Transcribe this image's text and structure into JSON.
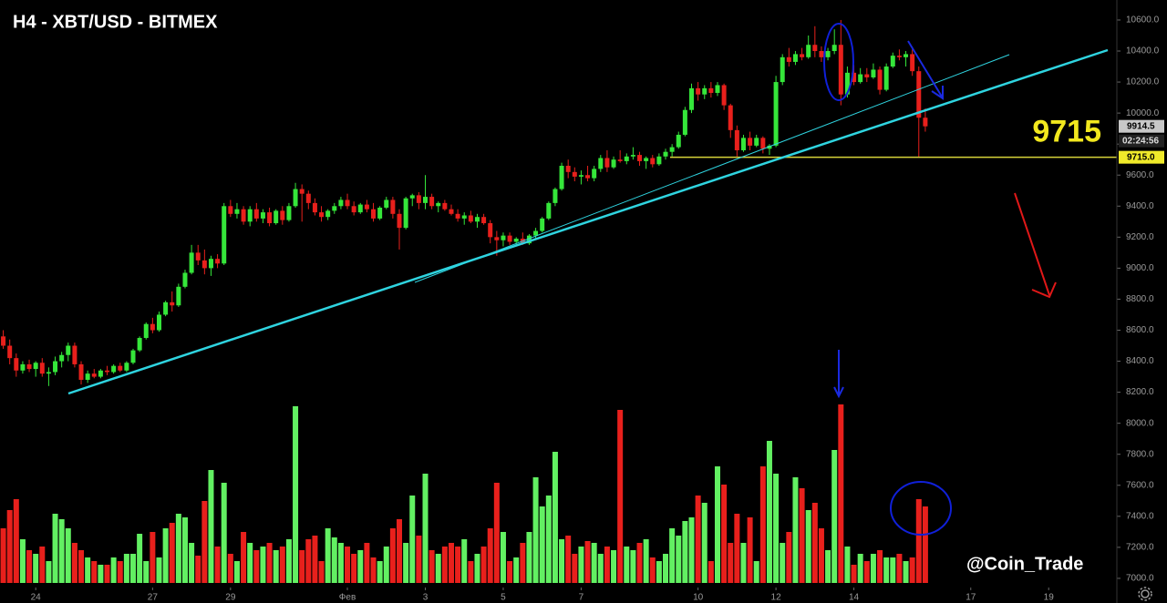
{
  "chart_data": {
    "type": "candlestick",
    "title": "H4 - XBT/USD - BITMEX",
    "up_color": "#35e63a",
    "down_color": "#e8201c",
    "volume_up_color": "#62f062",
    "volume_down_color": "#e8201c",
    "level": 9715,
    "level_color": "#d8d43a",
    "price_tags": [
      9914.5,
      "02:24:56",
      {
        "value": 9715,
        "label": "9715.0"
      }
    ],
    "watermark": "@Coin_Trade",
    "xlim": [
      -0.5,
      171.5
    ],
    "xticks": [
      {
        "value": 5,
        "label": "24"
      },
      {
        "value": 23,
        "label": "27"
      },
      {
        "value": 35,
        "label": "29"
      },
      {
        "value": 53,
        "label": "Фев"
      },
      {
        "value": 65,
        "label": "3"
      },
      {
        "value": 77,
        "label": "5"
      },
      {
        "value": 89,
        "label": "7"
      },
      {
        "value": 107,
        "label": "10"
      },
      {
        "value": 119,
        "label": "12"
      },
      {
        "value": 131,
        "label": "14"
      },
      {
        "value": 149,
        "label": "17"
      },
      {
        "value": 161,
        "label": "19"
      }
    ],
    "ylim": [
      6841,
      10729
    ],
    "yticks": [
      {
        "value": 7000,
        "label": "7000.0"
      },
      {
        "value": 7200,
        "label": "7200.0"
      },
      {
        "value": 7400,
        "label": "7400.0"
      },
      {
        "value": 7600,
        "label": "7600.0"
      },
      {
        "value": 7800,
        "label": "7800.0"
      },
      {
        "value": 8000,
        "label": "8000.0"
      },
      {
        "value": 8200,
        "label": "8200.0"
      },
      {
        "value": 8400,
        "label": "8400.0"
      },
      {
        "value": 8600,
        "label": "8600.0"
      },
      {
        "value": 8800,
        "label": "8800.0"
      },
      {
        "value": 9000,
        "label": "9000.0"
      },
      {
        "value": 9200,
        "label": "9200.0"
      },
      {
        "value": 9400,
        "label": "9400.0"
      },
      {
        "value": 9600,
        "label": "9600.0"
      },
      {
        "value": 9800,
        "label": "9800.0"
      },
      {
        "value": 10000,
        "label": "10000.0"
      },
      {
        "value": 10200,
        "label": "10200.0"
      },
      {
        "value": 10400,
        "label": "10400.0"
      },
      {
        "value": 10600,
        "label": "10600.0"
      }
    ],
    "candles": [
      [
        8560,
        8600,
        8480,
        8500
      ],
      [
        8500,
        8540,
        8380,
        8420
      ],
      [
        8420,
        8450,
        8300,
        8340
      ],
      [
        8340,
        8400,
        8320,
        8380
      ],
      [
        8380,
        8410,
        8330,
        8350
      ],
      [
        8350,
        8400,
        8300,
        8390
      ],
      [
        8390,
        8420,
        8300,
        8320
      ],
      [
        8320,
        8360,
        8240,
        8330
      ],
      [
        8330,
        8430,
        8310,
        8400
      ],
      [
        8400,
        8460,
        8360,
        8440
      ],
      [
        8440,
        8520,
        8400,
        8500
      ],
      [
        8500,
        8520,
        8360,
        8380
      ],
      [
        8380,
        8400,
        8250,
        8280
      ],
      [
        8280,
        8340,
        8260,
        8320
      ],
      [
        8320,
        8350,
        8290,
        8300
      ],
      [
        8300,
        8350,
        8290,
        8340
      ],
      [
        8340,
        8370,
        8310,
        8330
      ],
      [
        8330,
        8380,
        8320,
        8370
      ],
      [
        8370,
        8390,
        8330,
        8340
      ],
      [
        8340,
        8400,
        8330,
        8390
      ],
      [
        8390,
        8480,
        8380,
        8470
      ],
      [
        8470,
        8560,
        8460,
        8550
      ],
      [
        8550,
        8650,
        8540,
        8640
      ],
      [
        8640,
        8680,
        8580,
        8600
      ],
      [
        8600,
        8720,
        8590,
        8700
      ],
      [
        8700,
        8790,
        8690,
        8780
      ],
      [
        8780,
        8850,
        8720,
        8760
      ],
      [
        8760,
        8900,
        8750,
        8880
      ],
      [
        8880,
        8990,
        8870,
        8970
      ],
      [
        8970,
        9150,
        8960,
        9100
      ],
      [
        9100,
        9150,
        9020,
        9050
      ],
      [
        9050,
        9120,
        8960,
        9000
      ],
      [
        9000,
        9080,
        8950,
        9060
      ],
      [
        9060,
        9090,
        9000,
        9030
      ],
      [
        9030,
        9420,
        9020,
        9400
      ],
      [
        9400,
        9440,
        9330,
        9350
      ],
      [
        9350,
        9420,
        9320,
        9380
      ],
      [
        9380,
        9400,
        9280,
        9300
      ],
      [
        9300,
        9400,
        9270,
        9380
      ],
      [
        9380,
        9420,
        9300,
        9320
      ],
      [
        9320,
        9380,
        9290,
        9360
      ],
      [
        9360,
        9390,
        9270,
        9290
      ],
      [
        9290,
        9380,
        9280,
        9370
      ],
      [
        9370,
        9400,
        9280,
        9310
      ],
      [
        9310,
        9420,
        9300,
        9400
      ],
      [
        9400,
        9550,
        9390,
        9510
      ],
      [
        9510,
        9540,
        9300,
        9480
      ],
      [
        9480,
        9500,
        9380,
        9420
      ],
      [
        9420,
        9450,
        9340,
        9360
      ],
      [
        9360,
        9400,
        9300,
        9330
      ],
      [
        9330,
        9380,
        9310,
        9370
      ],
      [
        9370,
        9420,
        9350,
        9400
      ],
      [
        9400,
        9460,
        9380,
        9440
      ],
      [
        9440,
        9480,
        9380,
        9400
      ],
      [
        9400,
        9430,
        9340,
        9360
      ],
      [
        9360,
        9420,
        9350,
        9410
      ],
      [
        9410,
        9440,
        9360,
        9380
      ],
      [
        9380,
        9420,
        9300,
        9320
      ],
      [
        9320,
        9400,
        9310,
        9390
      ],
      [
        9390,
        9460,
        9380,
        9440
      ],
      [
        9440,
        9460,
        9320,
        9350
      ],
      [
        9350,
        9380,
        9120,
        9260
      ],
      [
        9260,
        9460,
        9250,
        9450
      ],
      [
        9450,
        9480,
        9400,
        9470
      ],
      [
        9470,
        9490,
        9380,
        9420
      ],
      [
        9420,
        9600,
        9380,
        9460
      ],
      [
        9460,
        9480,
        9380,
        9400
      ],
      [
        9400,
        9430,
        9360,
        9420
      ],
      [
        9420,
        9440,
        9370,
        9380
      ],
      [
        9380,
        9410,
        9340,
        9350
      ],
      [
        9350,
        9380,
        9300,
        9320
      ],
      [
        9320,
        9360,
        9280,
        9340
      ],
      [
        9340,
        9370,
        9290,
        9300
      ],
      [
        9300,
        9350,
        9260,
        9330
      ],
      [
        9330,
        9350,
        9280,
        9290
      ],
      [
        9290,
        9310,
        9160,
        9200
      ],
      [
        9200,
        9240,
        9080,
        9180
      ],
      [
        9180,
        9230,
        9140,
        9210
      ],
      [
        9210,
        9230,
        9150,
        9170
      ],
      [
        9170,
        9200,
        9140,
        9190
      ],
      [
        9190,
        9230,
        9150,
        9160
      ],
      [
        9160,
        9220,
        9150,
        9210
      ],
      [
        9210,
        9260,
        9190,
        9240
      ],
      [
        9240,
        9330,
        9230,
        9320
      ],
      [
        9320,
        9430,
        9310,
        9420
      ],
      [
        9420,
        9520,
        9400,
        9510
      ],
      [
        9510,
        9680,
        9500,
        9660
      ],
      [
        9660,
        9700,
        9580,
        9620
      ],
      [
        9620,
        9650,
        9560,
        9590
      ],
      [
        9590,
        9630,
        9540,
        9600
      ],
      [
        9600,
        9660,
        9560,
        9580
      ],
      [
        9580,
        9660,
        9560,
        9640
      ],
      [
        9640,
        9730,
        9620,
        9710
      ],
      [
        9710,
        9760,
        9620,
        9650
      ],
      [
        9650,
        9720,
        9640,
        9700
      ],
      [
        9700,
        9760,
        9680,
        9690
      ],
      [
        9690,
        9740,
        9670,
        9720
      ],
      [
        9720,
        9780,
        9700,
        9730
      ],
      [
        9730,
        9750,
        9660,
        9690
      ],
      [
        9690,
        9720,
        9640,
        9710
      ],
      [
        9710,
        9730,
        9650,
        9670
      ],
      [
        9670,
        9740,
        9660,
        9720
      ],
      [
        9720,
        9770,
        9700,
        9750
      ],
      [
        9750,
        9800,
        9720,
        9780
      ],
      [
        9780,
        9880,
        9770,
        9860
      ],
      [
        9860,
        10040,
        9850,
        10020
      ],
      [
        10020,
        10190,
        10000,
        10160
      ],
      [
        10160,
        10200,
        10080,
        10120
      ],
      [
        10120,
        10180,
        10090,
        10160
      ],
      [
        10160,
        10200,
        10100,
        10130
      ],
      [
        10130,
        10200,
        10110,
        10180
      ],
      [
        10180,
        10190,
        10020,
        10050
      ],
      [
        10050,
        10060,
        9840,
        9890
      ],
      [
        9890,
        9920,
        9720,
        9760
      ],
      [
        9760,
        9860,
        9750,
        9840
      ],
      [
        9840,
        9880,
        9760,
        9790
      ],
      [
        9790,
        9860,
        9780,
        9840
      ],
      [
        9840,
        9850,
        9740,
        9770
      ],
      [
        9770,
        9800,
        9730,
        9790
      ],
      [
        9790,
        10240,
        9780,
        10200
      ],
      [
        10200,
        10380,
        10180,
        10360
      ],
      [
        10360,
        10420,
        10300,
        10330
      ],
      [
        10330,
        10400,
        10310,
        10380
      ],
      [
        10380,
        10420,
        10340,
        10360
      ],
      [
        10360,
        10500,
        10350,
        10440
      ],
      [
        10440,
        10560,
        10360,
        10400
      ],
      [
        10400,
        10430,
        10330,
        10360
      ],
      [
        10360,
        10420,
        10340,
        10400
      ],
      [
        10400,
        10540,
        10380,
        10440
      ],
      [
        10440,
        10600,
        10050,
        10120
      ],
      [
        10120,
        10300,
        10100,
        10260
      ],
      [
        10260,
        10310,
        10180,
        10200
      ],
      [
        10200,
        10290,
        10190,
        10250
      ],
      [
        10250,
        10290,
        10200,
        10230
      ],
      [
        10230,
        10320,
        10220,
        10280
      ],
      [
        10280,
        10300,
        10120,
        10150
      ],
      [
        10150,
        10320,
        10140,
        10300
      ],
      [
        10300,
        10390,
        10290,
        10370
      ],
      [
        10370,
        10410,
        10340,
        10360
      ],
      [
        10360,
        10400,
        10300,
        10380
      ],
      [
        10380,
        10410,
        10240,
        10270
      ],
      [
        10270,
        10300,
        9715,
        9970
      ],
      [
        9970,
        10030,
        9880,
        9914.5
      ]
    ],
    "volume": [
      30,
      40,
      46,
      24,
      18,
      16,
      20,
      12,
      38,
      35,
      30,
      22,
      18,
      14,
      12,
      10,
      10,
      14,
      12,
      16,
      16,
      27,
      12,
      28,
      14,
      30,
      33,
      38,
      36,
      22,
      15,
      45,
      62,
      20,
      55,
      16,
      12,
      28,
      22,
      18,
      20,
      22,
      18,
      20,
      24,
      97,
      18,
      24,
      26,
      12,
      30,
      25,
      22,
      20,
      16,
      18,
      22,
      14,
      12,
      20,
      30,
      35,
      22,
      48,
      26,
      60,
      18,
      16,
      20,
      22,
      20,
      24,
      12,
      16,
      20,
      30,
      55,
      28,
      12,
      14,
      22,
      28,
      58,
      42,
      48,
      72,
      24,
      26,
      16,
      20,
      23,
      22,
      16,
      20,
      18,
      95,
      20,
      18,
      22,
      24,
      14,
      12,
      16,
      30,
      26,
      34,
      36,
      48,
      44,
      12,
      64,
      54,
      22,
      38,
      22,
      36,
      12,
      64,
      78,
      60,
      22,
      28,
      58,
      52,
      40,
      44,
      30,
      18,
      73,
      98,
      20,
      10,
      16,
      12,
      16,
      18,
      14,
      14,
      16,
      12,
      14,
      46,
      42
    ]
  }
}
